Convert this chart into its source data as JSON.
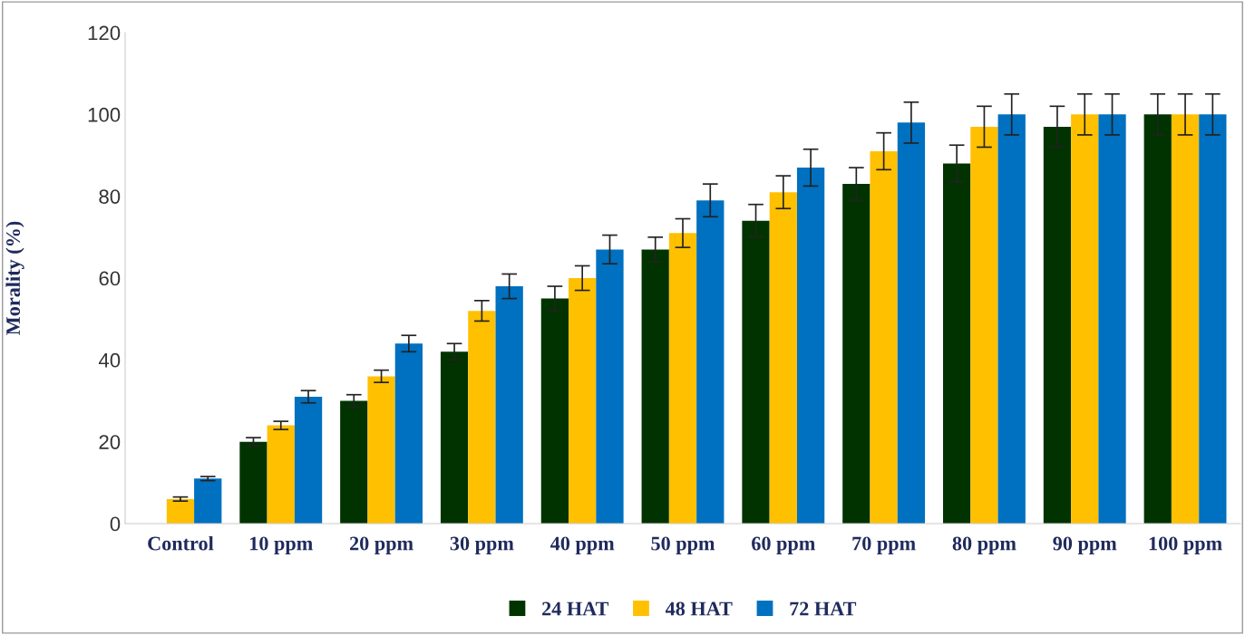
{
  "chart_data": {
    "type": "bar",
    "ylabel": "Morality (%)",
    "categories": [
      "Control",
      "10 ppm",
      "20 ppm",
      "30 ppm",
      "40 ppm",
      "50 ppm",
      "60 ppm",
      "70 ppm",
      "80 ppm",
      "90 ppm",
      "100 ppm"
    ],
    "series": [
      {
        "name": "24 HAT",
        "color": "#003300",
        "values": [
          0,
          20,
          30,
          42,
          55,
          67,
          74,
          83,
          88,
          97,
          100
        ],
        "errors": [
          null,
          1,
          1.5,
          2,
          3,
          3,
          4,
          4,
          4.5,
          5,
          5
        ]
      },
      {
        "name": "48 HAT",
        "color": "#ffc000",
        "values": [
          6,
          24,
          36,
          52,
          60,
          71,
          81,
          91,
          97,
          100,
          100
        ],
        "errors": [
          0.5,
          1,
          1.5,
          2.5,
          3,
          3.5,
          4,
          4.5,
          5,
          5,
          5
        ]
      },
      {
        "name": "72 HAT",
        "color": "#0070c0",
        "values": [
          11,
          31,
          44,
          58,
          67,
          79,
          87,
          98,
          100,
          100,
          100
        ],
        "errors": [
          0.5,
          1.5,
          2,
          3,
          3.5,
          4,
          4.5,
          5,
          5,
          5,
          5
        ]
      }
    ],
    "ylim": [
      0,
      120
    ],
    "yticks": [
      0,
      20,
      40,
      60,
      80,
      100,
      120
    ],
    "grid": false,
    "legend": "bottom"
  }
}
